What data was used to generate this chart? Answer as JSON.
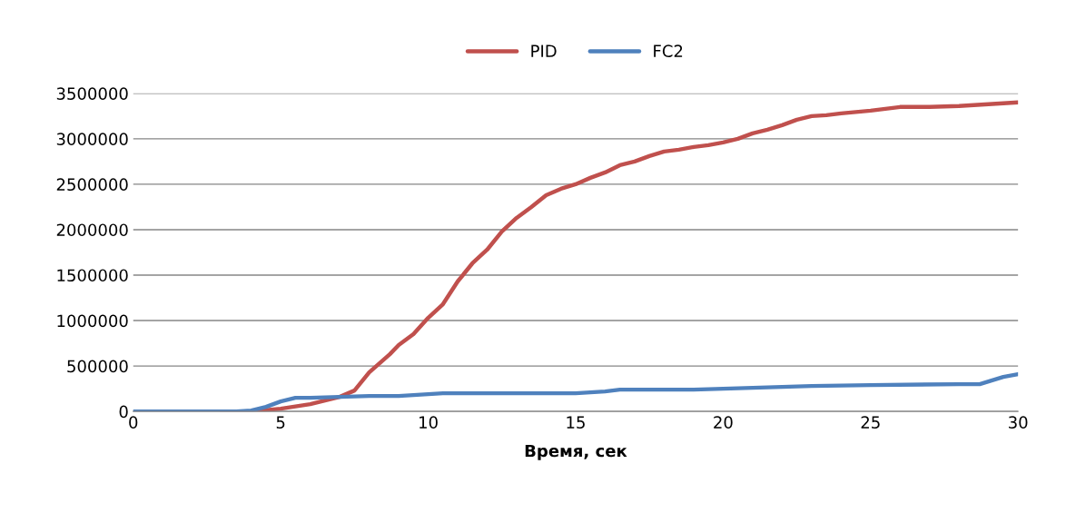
{
  "chart_data": {
    "type": "line",
    "xlabel": "Время, сек",
    "series": [
      {
        "name": "PID",
        "color": "#c0504d",
        "x": [
          3,
          4,
          5,
          6,
          7,
          7.5,
          8,
          8.7,
          9,
          9.5,
          10,
          10.5,
          11,
          11.5,
          12,
          12.5,
          13,
          13.5,
          14,
          14.5,
          15,
          15.5,
          16,
          16.5,
          17,
          17.5,
          18,
          18.5,
          19,
          19.5,
          20,
          20.5,
          21,
          21.5,
          22,
          22.5,
          23,
          23.5,
          24,
          25,
          26,
          27,
          28,
          29,
          30
        ],
        "values": [
          0,
          0,
          30000,
          80000,
          160000,
          230000,
          430000,
          630000,
          730000,
          850000,
          1030000,
          1180000,
          1430000,
          1630000,
          1780000,
          1980000,
          2130000,
          2250000,
          2380000,
          2450000,
          2500000,
          2570000,
          2630000,
          2710000,
          2750000,
          2810000,
          2860000,
          2880000,
          2910000,
          2930000,
          2960000,
          3000000,
          3060000,
          3100000,
          3150000,
          3210000,
          3250000,
          3260000,
          3280000,
          3310000,
          3350000,
          3350000,
          3360000,
          3380000,
          3400000
        ]
      },
      {
        "name": "FC2",
        "color": "#4f81bd",
        "x": [
          0,
          1,
          2,
          3,
          3.5,
          4,
          4.5,
          5,
          5.5,
          6,
          7,
          8,
          9,
          10,
          10.5,
          12,
          13,
          15,
          15.5,
          16,
          16.5,
          17,
          19,
          20,
          21,
          22,
          23,
          25,
          28,
          28.7,
          29,
          29.5,
          30
        ],
        "values": [
          0,
          0,
          0,
          0,
          0,
          10000,
          50000,
          110000,
          150000,
          150000,
          160000,
          170000,
          170000,
          190000,
          200000,
          200000,
          200000,
          200000,
          210000,
          220000,
          240000,
          240000,
          240000,
          250000,
          260000,
          270000,
          280000,
          290000,
          300000,
          300000,
          330000,
          380000,
          410000
        ]
      }
    ],
    "xlim": [
      0,
      30
    ],
    "xticks": [
      0,
      5,
      10,
      15,
      20,
      25,
      30
    ],
    "ylim": [
      0,
      3500000
    ],
    "yticks": [
      0,
      500000,
      1000000,
      1500000,
      2000000,
      2500000,
      3000000,
      3500000
    ],
    "grid": "y",
    "legend": "top",
    "marker": "none",
    "line_style": "solid"
  }
}
